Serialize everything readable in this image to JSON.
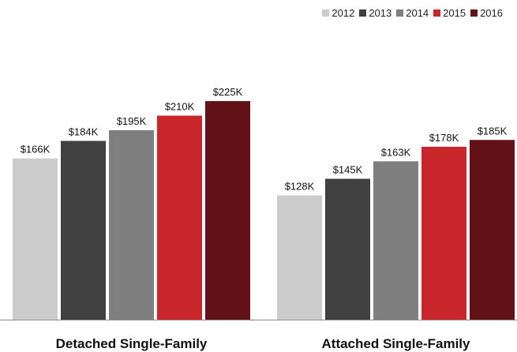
{
  "chart_data": {
    "type": "bar",
    "categories": [
      "Detached Single-Family",
      "Attached Single-Family"
    ],
    "series": [
      {
        "name": "2012",
        "color": "#cccccc",
        "values": [
          166,
          128
        ],
        "labels": [
          "$166K",
          "$128K"
        ]
      },
      {
        "name": "2013",
        "color": "#404040",
        "values": [
          184,
          145
        ],
        "labels": [
          "$184K",
          "$145K"
        ]
      },
      {
        "name": "2014",
        "color": "#7f7f7f",
        "values": [
          195,
          163
        ],
        "labels": [
          "$195K",
          "$163K"
        ]
      },
      {
        "name": "2015",
        "color": "#c8262a",
        "values": [
          210,
          178
        ],
        "labels": [
          "$210K",
          "$178K"
        ]
      },
      {
        "name": "2016",
        "color": "#621216",
        "values": [
          225,
          185
        ],
        "labels": [
          "$225K",
          "$185K"
        ]
      }
    ],
    "ylim": [
      0,
      260
    ],
    "legend_position": "top-right",
    "grid": false
  }
}
